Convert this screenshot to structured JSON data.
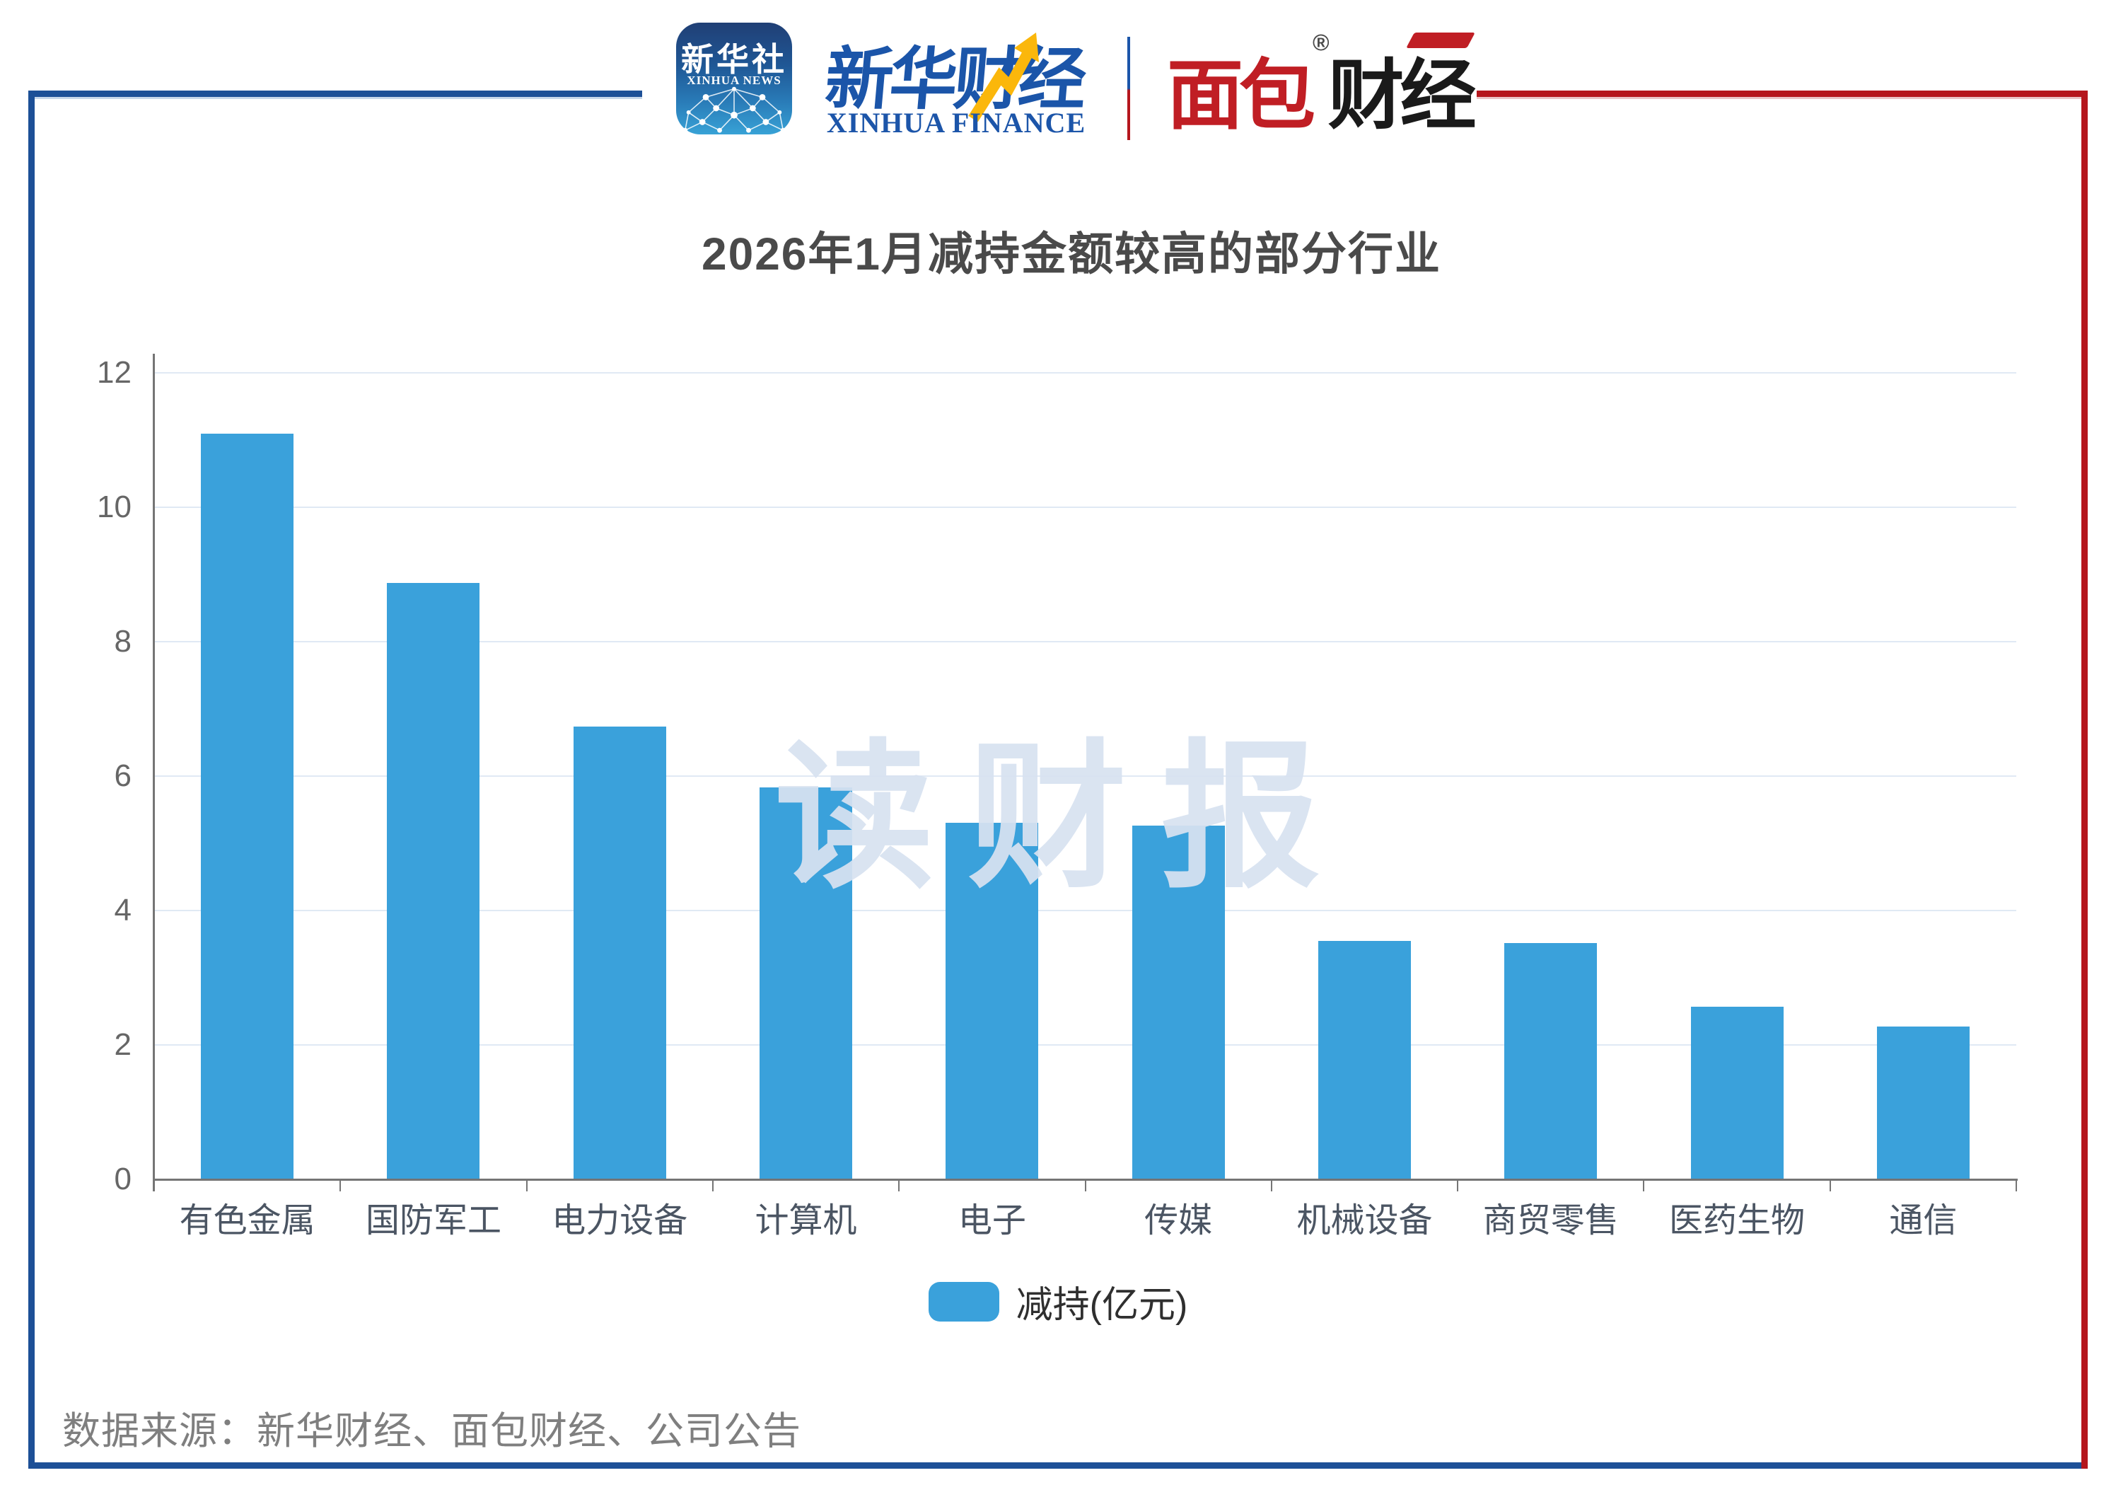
{
  "header": {
    "xinhua_news_badge": {
      "title_cn": "新华社",
      "title_en": "XINHUA NEWS"
    },
    "xinhua_finance_logo": {
      "title_cn": "新华财经",
      "title_en": "XINHUA FINANCE"
    },
    "mianbao_logo": {
      "part_red": "面包",
      "part_black": "财经",
      "registered_mark": "®"
    }
  },
  "chart_data": {
    "type": "bar",
    "title": "2026年1月减持金额较高的部分行业",
    "categories": [
      "有色金属",
      "国防军工",
      "电力设备",
      "计算机",
      "电子",
      "传媒",
      "机械设备",
      "商贸零售",
      "医药生物",
      "通信"
    ],
    "series": [
      {
        "name": "减持(亿元)",
        "values": [
          11.1,
          8.87,
          6.74,
          5.83,
          5.31,
          5.26,
          3.55,
          3.52,
          2.57,
          2.27
        ]
      }
    ],
    "xlabel": "",
    "ylabel": "",
    "ylim": [
      0,
      12
    ],
    "yticks": [
      0,
      2,
      4,
      6,
      8,
      10,
      12
    ],
    "grid": true,
    "legend": {
      "labels": [
        "减持(亿元)"
      ],
      "position": "bottom"
    },
    "bar_color": "#3AA1DB"
  },
  "watermark_text": "读财报",
  "source_note": "数据来源：新华财经、面包财经、公司公告",
  "colors": {
    "bar": "#3AA1DB",
    "frame_blue": "#1D5097",
    "frame_red": "#B5161D",
    "grid_line": "#E0E9F4",
    "axis_line": "#757575",
    "title_text": "#4A4A4A",
    "watermark": "#D8E2F1",
    "arrow_yellow": "#FBB70B",
    "mianbao_red": "#C01E24",
    "xinhua_blue": "#1B55A9"
  }
}
